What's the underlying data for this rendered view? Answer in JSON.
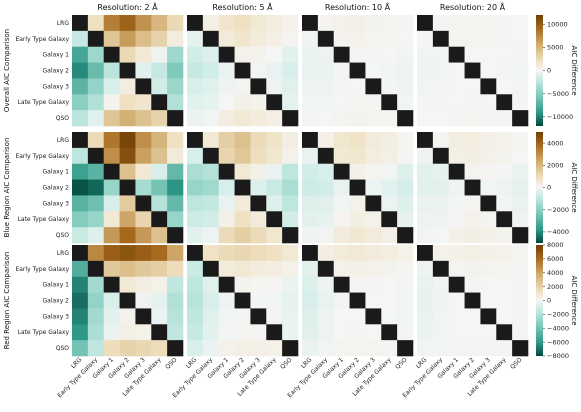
{
  "chart_data": {
    "type": "heatmap",
    "labels": [
      "LRG",
      "Early Type Galaxy",
      "Galaxy 1",
      "Galaxy 2",
      "Galaxy 3",
      "Late Type Galaxy",
      "QSO"
    ],
    "columns": [
      "Resolution: 2 Å",
      "Resolution: 5 Å",
      "Resolution: 10 Å",
      "Resolution: 20 Å"
    ],
    "rows": [
      {
        "title": "Overall AIC Comparison",
        "colorbar_label": "AIC Difference",
        "colorbar_range": [
          -12000,
          12000
        ],
        "colorbar_ticks": [
          10000,
          5000,
          0,
          -5000,
          -10000
        ],
        "panels": [
          [
            [
              null,
              2000,
              8000,
              9500,
              7000,
              5000,
              2500
            ],
            [
              -2000,
              null,
              4000,
              6500,
              4500,
              3000,
              800
            ],
            [
              -8000,
              -4000,
              null,
              2500,
              1200,
              -300,
              -4000
            ],
            [
              -9500,
              -6500,
              -2500,
              null,
              -800,
              -2000,
              -5500
            ],
            [
              -7000,
              -4500,
              -1200,
              800,
              null,
              -1500,
              -4200
            ],
            [
              -5000,
              -3000,
              300,
              2000,
              1500,
              null,
              -3000
            ],
            [
              -2500,
              -800,
              4000,
              5500,
              4200,
              3000,
              null
            ]
          ],
          [
            [
              null,
              600,
              1500,
              2000,
              1200,
              800,
              400
            ],
            [
              -600,
              null,
              1000,
              1500,
              900,
              600,
              200
            ],
            [
              -1500,
              -1000,
              null,
              400,
              300,
              0,
              -800
            ],
            [
              -2000,
              -1500,
              -400,
              null,
              -200,
              -500,
              -1200
            ],
            [
              -1200,
              -900,
              -300,
              200,
              null,
              -300,
              -900
            ],
            [
              -800,
              -600,
              0,
              500,
              300,
              null,
              -600
            ],
            [
              -400,
              -200,
              800,
              1200,
              900,
              600,
              null
            ]
          ],
          [
            [
              null,
              200,
              400,
              500,
              300,
              200,
              100
            ],
            [
              -200,
              null,
              300,
              400,
              250,
              150,
              50
            ],
            [
              -400,
              -300,
              null,
              100,
              80,
              0,
              -200
            ],
            [
              -500,
              -400,
              -100,
              null,
              -50,
              -150,
              -300
            ],
            [
              -300,
              -250,
              -80,
              50,
              null,
              -100,
              -250
            ],
            [
              -200,
              -150,
              0,
              150,
              100,
              null,
              -150
            ],
            [
              -100,
              -50,
              200,
              300,
              250,
              150,
              null
            ]
          ],
          [
            [
              null,
              100,
              200,
              250,
              150,
              100,
              50
            ],
            [
              -100,
              null,
              150,
              200,
              120,
              80,
              20
            ],
            [
              -200,
              -150,
              null,
              50,
              40,
              0,
              -100
            ],
            [
              -250,
              -200,
              -50,
              null,
              -20,
              -80,
              -150
            ],
            [
              -150,
              -120,
              -40,
              20,
              null,
              -50,
              -120
            ],
            [
              -100,
              -80,
              0,
              80,
              50,
              null,
              -80
            ],
            [
              -50,
              -20,
              100,
              150,
              120,
              80,
              null
            ]
          ]
        ]
      },
      {
        "title": "Blue Region AIC Comparison",
        "colorbar_label": "AIC Difference",
        "colorbar_range": [
          -5000,
          5000
        ],
        "colorbar_ticks": [
          4000,
          2000,
          0,
          -2000,
          -4000
        ],
        "panels": [
          [
            [
              null,
              1000,
              3500,
              4800,
              3000,
              2200,
              800
            ],
            [
              -1000,
              null,
              3000,
              4500,
              2600,
              1800,
              400
            ],
            [
              -3500,
              -3000,
              null,
              1800,
              500,
              -500,
              -2800
            ],
            [
              -4800,
              -4500,
              -1800,
              null,
              -1500,
              -2500,
              -3800
            ],
            [
              -3000,
              -2600,
              -500,
              1500,
              null,
              -1200,
              -2800
            ],
            [
              -2200,
              -1800,
              500,
              2500,
              1200,
              null,
              -1800
            ],
            [
              -800,
              -400,
              2800,
              3800,
              2800,
              1800,
              null
            ]
          ],
          [
            [
              null,
              500,
              1400,
              1800,
              1000,
              700,
              300
            ],
            [
              -500,
              null,
              1200,
              1600,
              900,
              600,
              150
            ],
            [
              -1400,
              -1200,
              null,
              500,
              200,
              -200,
              -1000
            ],
            [
              -1800,
              -1600,
              -500,
              null,
              -400,
              -800,
              -1400
            ],
            [
              -1000,
              -900,
              -200,
              400,
              null,
              -400,
              -1000
            ],
            [
              -700,
              -600,
              200,
              800,
              400,
              null,
              -600
            ],
            [
              -300,
              -150,
              1000,
              1400,
              1000,
              600,
              null
            ]
          ],
          [
            [
              null,
              200,
              600,
              700,
              400,
              300,
              100
            ],
            [
              -200,
              null,
              500,
              600,
              350,
              250,
              50
            ],
            [
              -600,
              -500,
              null,
              200,
              80,
              -80,
              -400
            ],
            [
              -700,
              -600,
              -200,
              null,
              -150,
              -300,
              -550
            ],
            [
              -400,
              -350,
              -80,
              150,
              null,
              -150,
              -400
            ],
            [
              -300,
              -250,
              80,
              300,
              150,
              null,
              -250
            ],
            [
              -100,
              -50,
              400,
              550,
              400,
              250,
              null
            ]
          ],
          [
            [
              null,
              100,
              300,
              350,
              200,
              150,
              50
            ],
            [
              -100,
              null,
              250,
              300,
              180,
              120,
              20
            ],
            [
              -300,
              -250,
              null,
              100,
              40,
              -40,
              -200
            ],
            [
              -350,
              -300,
              -100,
              null,
              -80,
              -150,
              -280
            ],
            [
              -200,
              -180,
              -40,
              80,
              null,
              -80,
              -200
            ],
            [
              -150,
              -120,
              40,
              150,
              80,
              null,
              -120
            ],
            [
              -50,
              -20,
              200,
              280,
              200,
              120,
              null
            ]
          ]
        ]
      },
      {
        "title": "Red Region AIC Comparison",
        "colorbar_label": "AIC Difference",
        "colorbar_range": [
          -8000,
          8000
        ],
        "colorbar_ticks": [
          8000,
          6000,
          4000,
          2000,
          0,
          -2000,
          -4000,
          -6000,
          -8000
        ],
        "panels": [
          [
            [
              null,
              5000,
              6500,
              7000,
              6500,
              6000,
              4000
            ],
            [
              -5000,
              null,
              2500,
              3000,
              2500,
              2200,
              1500
            ],
            [
              -6500,
              -2500,
              null,
              800,
              500,
              300,
              -1500
            ],
            [
              -7000,
              -3000,
              -800,
              null,
              -200,
              -400,
              -2000
            ],
            [
              -6500,
              -2500,
              -500,
              200,
              null,
              -300,
              -1800
            ],
            [
              -6000,
              -2200,
              -300,
              400,
              300,
              null,
              -1500
            ],
            [
              -4000,
              -1500,
              1500,
              2000,
              1800,
              1500,
              null
            ]
          ],
          [
            [
              null,
              1200,
              1600,
              1800,
              1500,
              1300,
              800
            ],
            [
              -1200,
              null,
              600,
              800,
              600,
              500,
              300
            ],
            [
              -1600,
              -600,
              null,
              200,
              100,
              50,
              -300
            ],
            [
              -1800,
              -800,
              -200,
              null,
              -50,
              -100,
              -400
            ],
            [
              -1500,
              -600,
              -100,
              50,
              null,
              -80,
              -350
            ],
            [
              -1300,
              -500,
              -50,
              100,
              80,
              null,
              -300
            ],
            [
              -800,
              -300,
              300,
              400,
              350,
              300,
              null
            ]
          ],
          [
            [
              null,
              500,
              700,
              800,
              650,
              550,
              300
            ],
            [
              -500,
              null,
              250,
              350,
              250,
              200,
              100
            ],
            [
              -700,
              -250,
              null,
              80,
              40,
              20,
              -120
            ],
            [
              -800,
              -350,
              -80,
              null,
              -20,
              -40,
              -150
            ],
            [
              -650,
              -250,
              -40,
              20,
              null,
              -30,
              -130
            ],
            [
              -550,
              -200,
              -20,
              40,
              30,
              null,
              -110
            ],
            [
              -300,
              -100,
              120,
              150,
              130,
              110,
              null
            ]
          ],
          [
            [
              null,
              250,
              350,
              400,
              330,
              280,
              150
            ],
            [
              -250,
              null,
              120,
              170,
              120,
              100,
              50
            ],
            [
              -350,
              -120,
              null,
              40,
              20,
              10,
              -60
            ],
            [
              -400,
              -170,
              -40,
              null,
              -10,
              -20,
              -80
            ],
            [
              -330,
              -120,
              -20,
              10,
              null,
              -15,
              -70
            ],
            [
              -280,
              -100,
              -10,
              20,
              15,
              null,
              -60
            ],
            [
              -150,
              -50,
              60,
              80,
              70,
              60,
              null
            ]
          ]
        ]
      }
    ]
  }
}
